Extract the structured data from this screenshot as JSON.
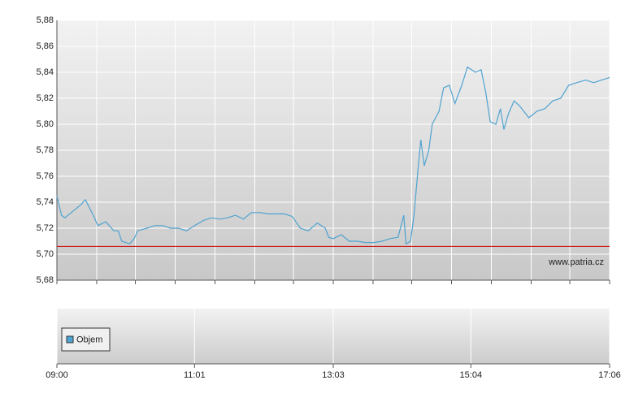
{
  "chart_data": {
    "type": "line",
    "color": "#4fa3d0",
    "x": [
      "09:00",
      "09:04",
      "09:07",
      "09:14",
      "09:21",
      "09:25",
      "09:29",
      "09:32",
      "09:36",
      "09:43",
      "09:50",
      "09:54",
      "09:57",
      "10:04",
      "10:08",
      "10:11",
      "10:19",
      "10:26",
      "10:33",
      "10:40",
      "10:47",
      "10:54",
      "11:01",
      "11:09",
      "11:16",
      "11:23",
      "11:30",
      "11:37",
      "11:44",
      "11:51",
      "11:59",
      "12:06",
      "12:13",
      "12:20",
      "12:27",
      "12:34",
      "12:41",
      "12:49",
      "12:56",
      "12:59",
      "13:03",
      "13:10",
      "13:17",
      "13:24",
      "13:31",
      "13:39",
      "13:46",
      "13:53",
      "14:00",
      "14:05",
      "14:07",
      "14:11",
      "14:14",
      "14:18",
      "14:20",
      "14:23",
      "14:27",
      "14:30",
      "14:36",
      "14:40",
      "14:45",
      "14:50",
      "14:56",
      "15:01",
      "15:08",
      "15:13",
      "15:17",
      "15:21",
      "15:26",
      "15:30",
      "15:33",
      "15:37",
      "15:42",
      "15:47",
      "15:55",
      "16:02",
      "16:09",
      "16:16",
      "16:23",
      "16:30",
      "16:37",
      "16:45",
      "16:52",
      "16:59",
      "17:06"
    ],
    "values": [
      5.745,
      5.73,
      5.728,
      5.733,
      5.738,
      5.742,
      5.735,
      5.73,
      5.722,
      5.725,
      5.718,
      5.718,
      5.71,
      5.708,
      5.712,
      5.718,
      5.72,
      5.722,
      5.722,
      5.72,
      5.72,
      5.718,
      5.722,
      5.726,
      5.728,
      5.727,
      5.728,
      5.73,
      5.727,
      5.732,
      5.732,
      5.731,
      5.731,
      5.731,
      5.729,
      5.72,
      5.718,
      5.724,
      5.72,
      5.713,
      5.712,
      5.715,
      5.71,
      5.71,
      5.709,
      5.709,
      5.71,
      5.712,
      5.713,
      5.73,
      5.708,
      5.71,
      5.73,
      5.77,
      5.788,
      5.768,
      5.78,
      5.8,
      5.81,
      5.828,
      5.83,
      5.816,
      5.83,
      5.844,
      5.84,
      5.842,
      5.825,
      5.802,
      5.8,
      5.812,
      5.796,
      5.808,
      5.818,
      5.814,
      5.805,
      5.81,
      5.812,
      5.818,
      5.82,
      5.83,
      5.832,
      5.834,
      5.832,
      5.834,
      5.836
    ],
    "xlim": [
      "09:00",
      "17:06"
    ],
    "xticks": [
      "09:00",
      "11:01",
      "13:03",
      "15:04",
      "17:06"
    ],
    "xgrid": [
      "09:00",
      "09:35",
      "10:09",
      "10:44",
      "11:19",
      "11:54",
      "12:28",
      "13:03",
      "13:38",
      "14:12",
      "14:47",
      "15:22",
      "15:57",
      "16:31",
      "17:06"
    ],
    "ylim": [
      5.68,
      5.88
    ],
    "yticks": [
      {
        "value": 5.68,
        "label": "5,68"
      },
      {
        "value": 5.7,
        "label": "5,70"
      },
      {
        "value": 5.72,
        "label": "5,72"
      },
      {
        "value": 5.74,
        "label": "5,74"
      },
      {
        "value": 5.76,
        "label": "5,76"
      },
      {
        "value": 5.78,
        "label": "5,78"
      },
      {
        "value": 5.8,
        "label": "5,80"
      },
      {
        "value": 5.82,
        "label": "5,82"
      },
      {
        "value": 5.84,
        "label": "5,84"
      },
      {
        "value": 5.86,
        "label": "5,86"
      },
      {
        "value": 5.88,
        "label": "5,88"
      }
    ],
    "hline": 5.706,
    "hline_color": "#cc0000",
    "grid": true,
    "watermark": "www.patria.cz",
    "volume": {
      "legend": "Objem",
      "color": "#4fa3d0"
    }
  }
}
